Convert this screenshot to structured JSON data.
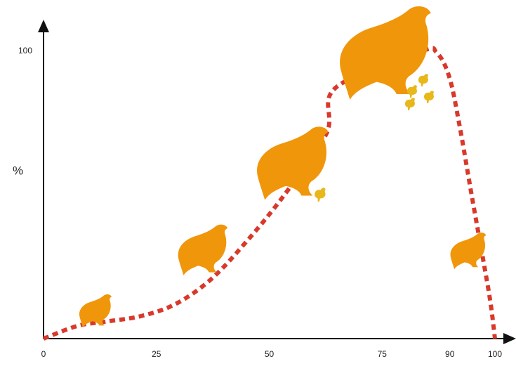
{
  "chart_data": {
    "type": "line",
    "y_label": "%",
    "x": [
      0,
      7.5,
      13.7,
      21.5,
      29.2,
      37,
      44.8,
      53.3,
      62.7,
      64.7,
      83.7,
      87.1,
      89.9,
      92.2,
      94.9,
      97.4,
      99,
      100
    ],
    "series": [
      {
        "color": "#d8392b",
        "values": [
          0,
          4.4,
          5.9,
          7.8,
          12,
          20.5,
          33.5,
          49.9,
          71.4,
          87.3,
          100,
          99.5,
          91,
          73.8,
          49.4,
          27.4,
          12.7,
          0
        ]
      }
    ],
    "xlim": [
      0,
      100
    ],
    "ylim": [
      0,
      100
    ],
    "xticks": [
      0,
      25,
      50,
      75,
      90,
      100
    ],
    "yticks": [
      100
    ],
    "grid": false
  }
}
